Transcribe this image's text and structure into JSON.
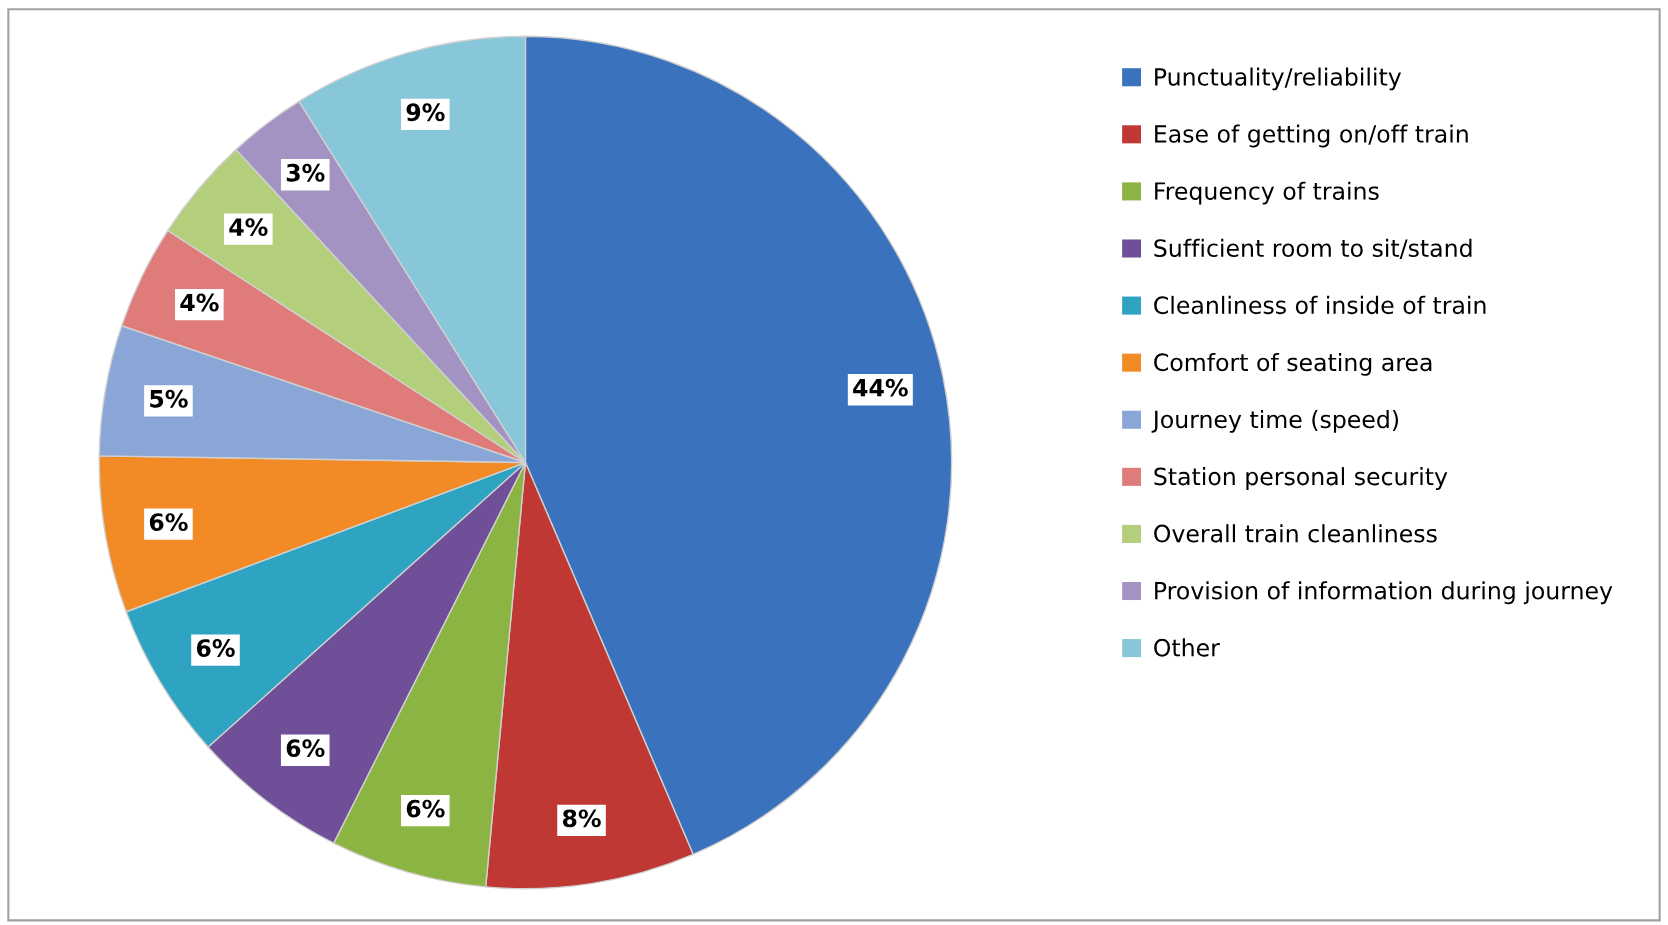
{
  "chart_data": {
    "type": "pie",
    "categories": [
      "Punctuality/reliability",
      "Ease of getting on/off train",
      "Frequency of trains",
      "Sufficient room to sit/stand",
      "Cleanliness of inside of train",
      "Comfort of seating area",
      "Journey time (speed)",
      "Station personal security",
      "Overall train cleanliness",
      "Provision of information during journey",
      "Other"
    ],
    "values": [
      44,
      8,
      6,
      6,
      6,
      6,
      5,
      4,
      4,
      3,
      9
    ],
    "value_labels": [
      "44%",
      "8%",
      "6%",
      "6%",
      "6%",
      "6%",
      "5%",
      "4%",
      "4%",
      "3%",
      "9%"
    ],
    "colors": [
      "#3b72bd",
      "#bf3833",
      "#8cb443",
      "#6f4f98",
      "#2ea3c2",
      "#f28a26",
      "#8aa6d6",
      "#df7b78",
      "#b3cf7b",
      "#a393c3",
      "#88c6da"
    ],
    "legend": "right"
  }
}
